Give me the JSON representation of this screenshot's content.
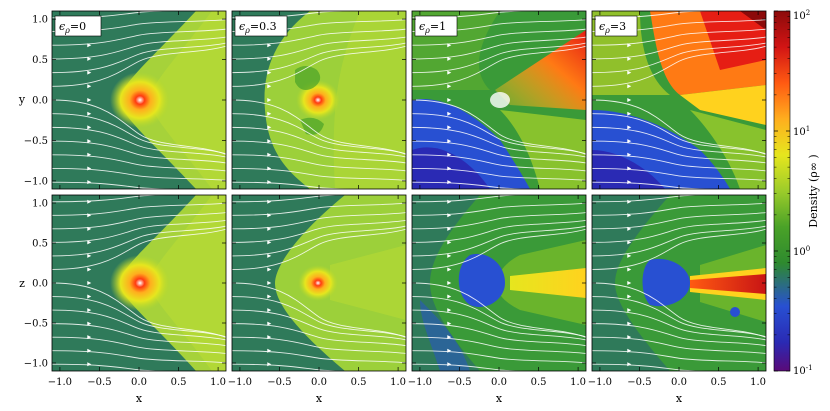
{
  "chart_data": {
    "type": "heatmap",
    "description_units": "Density (ρ∞)",
    "colorbar": {
      "label": "Density   (ρ∞ )",
      "scale": "log",
      "range": [
        0.1,
        100
      ],
      "ticks": [
        {
          "value": 100,
          "base": "10",
          "exp": "2"
        },
        {
          "value": 10,
          "base": "10",
          "exp": "1"
        },
        {
          "value": 1,
          "base": "10",
          "exp": "0"
        },
        {
          "value": 0.1,
          "base": "10",
          "exp": "-1"
        }
      ],
      "colors": [
        "#5a0a78",
        "#2a2ab4",
        "#2850d2",
        "#2e8a2e",
        "#4aa228",
        "#9ccc2a",
        "#e6e61e",
        "#ffae1e",
        "#ff5a12",
        "#d21414",
        "#8c0a0a"
      ]
    },
    "x_axis": {
      "label": "x",
      "range": [
        -1.1,
        1.1
      ],
      "ticks": [
        -1.0,
        -0.5,
        0.0,
        0.5,
        1.0
      ],
      "tick_labels": [
        "−1.0",
        "−0.5",
        "0.0",
        "0.5",
        "1.0"
      ]
    },
    "row_axes": [
      {
        "label": "y",
        "range": [
          -1.1,
          1.1
        ],
        "ticks": [
          -1.0,
          -0.5,
          0.0,
          0.5,
          1.0
        ],
        "tick_labels": [
          "−1.0",
          "−0.5",
          "0.0",
          "0.5",
          "1.0"
        ]
      },
      {
        "label": "z",
        "range": [
          -1.1,
          1.1
        ],
        "ticks": [
          -1.0,
          -0.5,
          0.0,
          0.5,
          1.0
        ],
        "tick_labels": [
          "−1.0",
          "−0.5",
          "0.0",
          "0.5",
          "1.0"
        ]
      }
    ],
    "panel_labels": [
      {
        "symbol": "ϵ",
        "sub": "ρ",
        "value": "=0"
      },
      {
        "symbol": "ϵ",
        "sub": "ρ",
        "value": "=0.3"
      },
      {
        "symbol": "ϵ",
        "sub": "ρ",
        "value": "=1"
      },
      {
        "symbol": "ϵ",
        "sub": "ρ",
        "value": "=3"
      }
    ],
    "panels": [
      {
        "row": 0,
        "col": 0,
        "epsilon": 0
      },
      {
        "row": 0,
        "col": 1,
        "epsilon": 0.3
      },
      {
        "row": 0,
        "col": 2,
        "epsilon": 1
      },
      {
        "row": 0,
        "col": 3,
        "epsilon": 3
      },
      {
        "row": 1,
        "col": 0,
        "epsilon": 0
      },
      {
        "row": 1,
        "col": 1,
        "epsilon": 0.3
      },
      {
        "row": 1,
        "col": 2,
        "epsilon": 1
      },
      {
        "row": 1,
        "col": 3,
        "epsilon": 3
      }
    ],
    "has_streamlines": true,
    "legend_placement": "top-left of each top-row panel",
    "colorbar_placement": "right"
  }
}
